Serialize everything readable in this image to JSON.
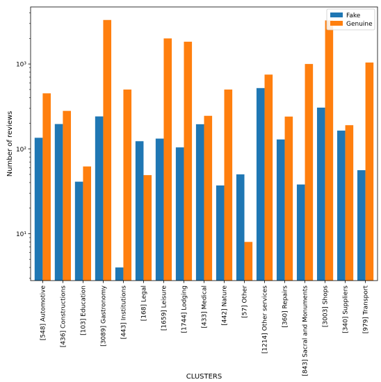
{
  "chart_data": {
    "type": "bar",
    "xlabel": "CLUSTERS",
    "ylabel": "Number of reviews",
    "yscale": "log",
    "ylim": [
      2.8,
      4700
    ],
    "ytick_labels": [
      "10¹",
      "10²",
      "10³"
    ],
    "ytick_values": [
      10,
      100,
      1000
    ],
    "legend_position": "top-right",
    "categories": [
      "[548] Automotive",
      "[436] Constructions",
      "[103] Education",
      "[3089] Gastronomy",
      "[443] Institutions",
      "[168] Legal",
      "[1659] Leisure",
      "[1744] Lodging",
      "[433] Medical",
      "[442] Nature",
      "[57] Other",
      "[1214] Other services",
      "[360] Repairs",
      "[843] Sacral and Monuments",
      "[3003] Shops",
      "[340] Suppliers",
      "[979] Transport"
    ],
    "series": [
      {
        "name": "Fake",
        "color": "#1f77b4",
        "values": [
          135,
          196,
          41,
          241,
          4,
          123,
          132,
          104,
          195,
          37,
          50,
          520,
          129,
          38,
          306,
          164,
          56
        ]
      },
      {
        "name": "Genuine",
        "color": "#ff7f0e",
        "values": [
          451,
          280,
          62,
          3300,
          500,
          49,
          2000,
          1830,
          245,
          500,
          8,
          750,
          240,
          1000,
          3260,
          190,
          1040
        ]
      }
    ]
  }
}
